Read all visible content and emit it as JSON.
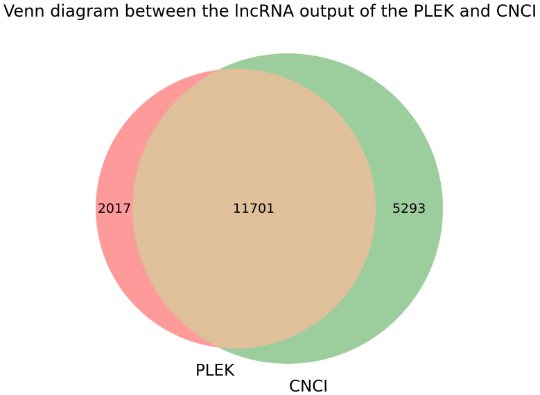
{
  "title": "Venn diagram between the lncRNA output of the PLEK and CNCI",
  "sets": {
    "left": {
      "label": "PLEK",
      "color": "#ff9a9a"
    },
    "right": {
      "label": "CNCI",
      "color": "#9ccd9c"
    },
    "overlap_color": "#e0bf9b"
  },
  "counts": {
    "left_only": "2017",
    "both": "11701",
    "right_only": "5293"
  }
}
